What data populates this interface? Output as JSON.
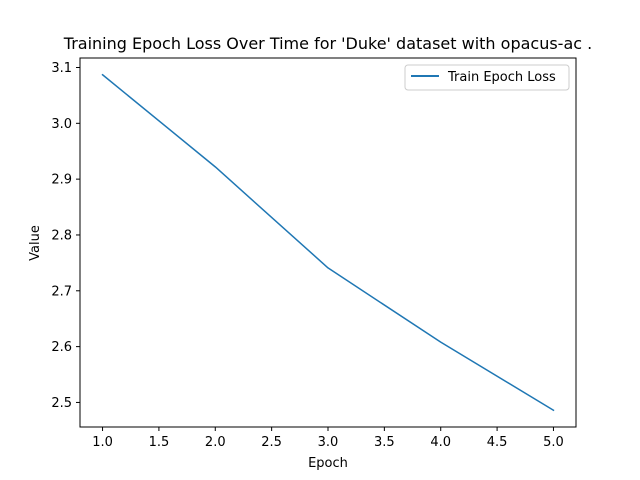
{
  "chart_data": {
    "type": "line",
    "title": "Training Epoch Loss Over Time for 'Duke' dataset with opacus-ac .",
    "xlabel": "Epoch",
    "ylabel": "Value",
    "xlim": [
      0.8,
      5.2
    ],
    "ylim": [
      2.456,
      3.117
    ],
    "xticks": [
      1.0,
      1.5,
      2.0,
      2.5,
      3.0,
      3.5,
      4.0,
      4.5,
      5.0
    ],
    "xtick_labels": [
      "1.0",
      "1.5",
      "2.0",
      "2.5",
      "3.0",
      "3.5",
      "4.0",
      "4.5",
      "5.0"
    ],
    "yticks": [
      2.5,
      2.6,
      2.7,
      2.8,
      2.9,
      3.0,
      3.1
    ],
    "ytick_labels": [
      "2.5",
      "2.6",
      "2.7",
      "2.8",
      "2.9",
      "3.0",
      "3.1"
    ],
    "grid": false,
    "legend_position": "top-right",
    "series": [
      {
        "name": "Train Epoch Loss",
        "color": "#1f77b4",
        "x": [
          1,
          2,
          3,
          4,
          5
        ],
        "y": [
          3.087,
          2.922,
          2.741,
          2.608,
          2.486
        ]
      }
    ]
  }
}
